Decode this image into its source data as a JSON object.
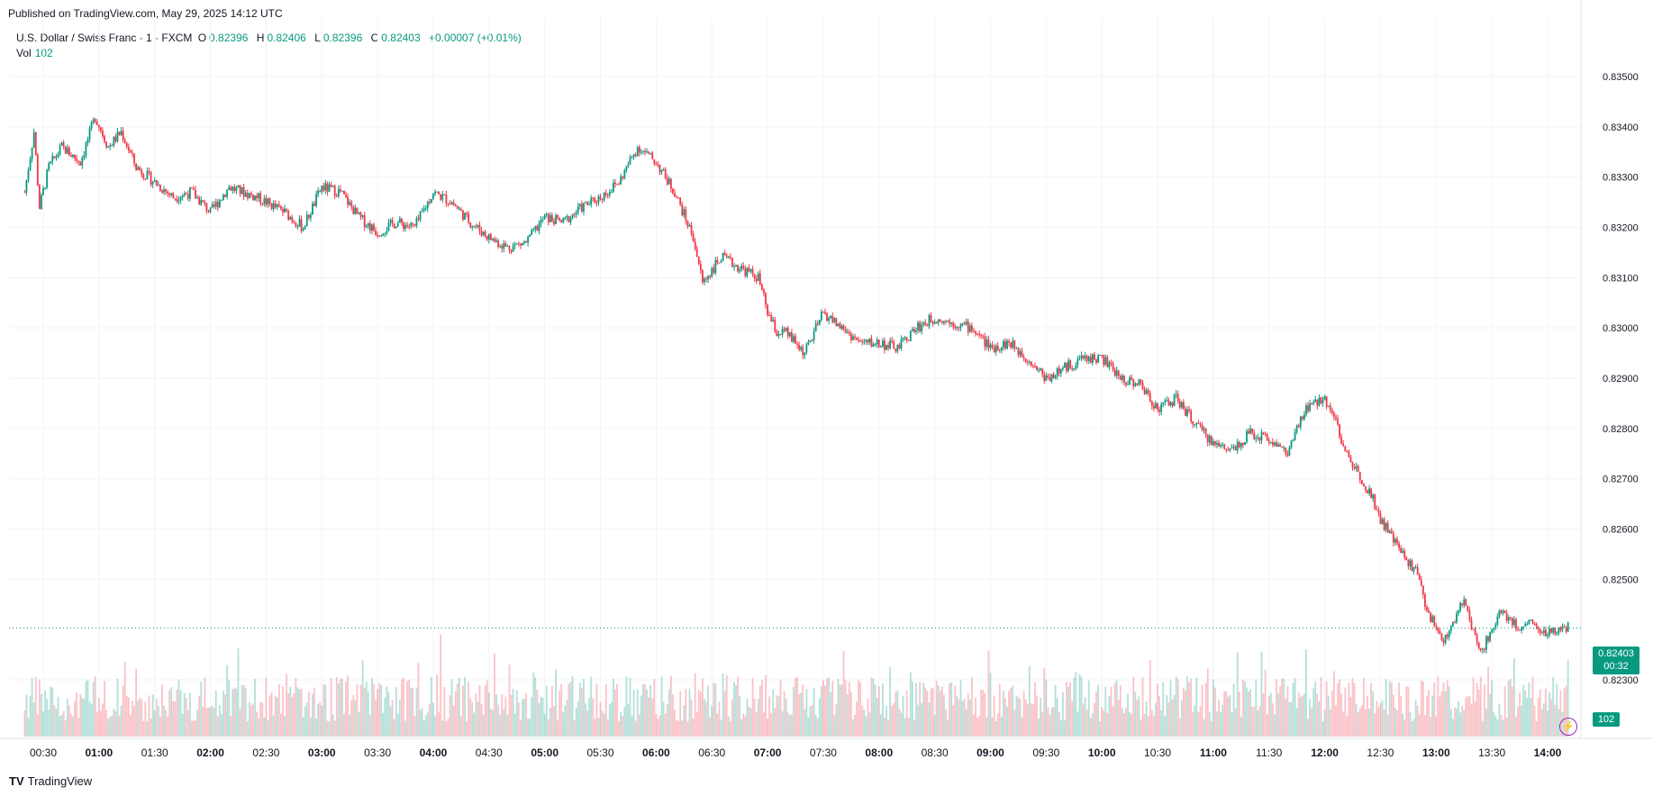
{
  "header": {
    "published": "Published on TradingView.com, May 29, 2025 14:12 UTC"
  },
  "legend": {
    "symbol": "U.S. Dollar / Swiss Franc · 1 · FXCM",
    "o_label": "O",
    "o_value": "0.82396",
    "h_label": "H",
    "h_value": "0.82406",
    "l_label": "L",
    "l_value": "0.82396",
    "c_label": "C",
    "c_value": "0.82403",
    "change": "+0.00007 (+0.01%)",
    "vol_label": "Vol",
    "vol_value": "102"
  },
  "price_tag": {
    "price": "0.82403",
    "countdown": "00:32"
  },
  "vol_tag": "102",
  "footer": {
    "logo": "TV",
    "brand": "TradingView"
  },
  "colors": {
    "up": "#089981",
    "down": "#f23645",
    "grid": "#f0f3fa",
    "text": "#131722"
  },
  "chart_data": {
    "type": "candlestick",
    "ylim": [
      0.8224,
      0.8356
    ],
    "y_ticks": [
      "0.83500",
      "0.83400",
      "0.83300",
      "0.83200",
      "0.83100",
      "0.83000",
      "0.82900",
      "0.82800",
      "0.82700",
      "0.82600",
      "0.82500",
      "0.82300"
    ],
    "y_tick_values": [
      0.835,
      0.834,
      0.833,
      0.832,
      0.831,
      0.83,
      0.829,
      0.828,
      0.827,
      0.826,
      0.825,
      0.823
    ],
    "x_ticks": [
      "00:30",
      "01:00",
      "01:30",
      "02:00",
      "02:30",
      "03:00",
      "03:30",
      "04:00",
      "04:30",
      "05:00",
      "05:30",
      "06:00",
      "06:30",
      "07:00",
      "07:30",
      "08:00",
      "08:30",
      "09:00",
      "09:30",
      "10:00",
      "10:30",
      "11:00",
      "11:30",
      "12:00",
      "12:30",
      "13:00",
      "13:30",
      "14:00"
    ],
    "x_tick_bold": [
      false,
      true,
      false,
      true,
      false,
      true,
      false,
      true,
      false,
      true,
      false,
      true,
      false,
      true,
      false,
      true,
      false,
      true,
      false,
      true,
      false,
      true,
      false,
      true,
      false,
      true,
      false,
      true
    ],
    "close_path": [
      [
        "00:20",
        0.8327
      ],
      [
        "00:25",
        0.8339
      ],
      [
        "00:28",
        0.8324
      ],
      [
        "00:33",
        0.8332
      ],
      [
        "00:40",
        0.8336
      ],
      [
        "00:50",
        0.8333
      ],
      [
        "00:58",
        0.8342
      ],
      [
        "01:05",
        0.8336
      ],
      [
        "01:12",
        0.8339
      ],
      [
        "01:20",
        0.8332
      ],
      [
        "01:30",
        0.8329
      ],
      [
        "01:40",
        0.8326
      ],
      [
        "01:50",
        0.8327
      ],
      [
        "02:00",
        0.8323
      ],
      [
        "02:10",
        0.8328
      ],
      [
        "02:25",
        0.8326
      ],
      [
        "02:40",
        0.8323
      ],
      [
        "02:50",
        0.832
      ],
      [
        "03:00",
        0.8328
      ],
      [
        "03:10",
        0.8327
      ],
      [
        "03:20",
        0.8322
      ],
      [
        "03:30",
        0.8319
      ],
      [
        "03:40",
        0.8321
      ],
      [
        "03:50",
        0.832
      ],
      [
        "04:00",
        0.8327
      ],
      [
        "04:10",
        0.8325
      ],
      [
        "04:20",
        0.8321
      ],
      [
        "04:30",
        0.8318
      ],
      [
        "04:40",
        0.8316
      ],
      [
        "04:50",
        0.8317
      ],
      [
        "05:00",
        0.8322
      ],
      [
        "05:10",
        0.8321
      ],
      [
        "05:20",
        0.8324
      ],
      [
        "05:30",
        0.8326
      ],
      [
        "05:40",
        0.8329
      ],
      [
        "05:50",
        0.8336
      ],
      [
        "06:00",
        0.8333
      ],
      [
        "06:10",
        0.8327
      ],
      [
        "06:20",
        0.8318
      ],
      [
        "06:25",
        0.8309
      ],
      [
        "06:35",
        0.8314
      ],
      [
        "06:45",
        0.8312
      ],
      [
        "06:55",
        0.831
      ],
      [
        "07:00",
        0.8303
      ],
      [
        "07:05",
        0.8299
      ],
      [
        "07:10",
        0.8299
      ],
      [
        "07:20",
        0.8295
      ],
      [
        "07:30",
        0.8303
      ],
      [
        "07:40",
        0.83
      ],
      [
        "07:50",
        0.8297
      ],
      [
        "08:00",
        0.8297
      ],
      [
        "08:10",
        0.8296
      ],
      [
        "08:20",
        0.83
      ],
      [
        "08:30",
        0.8302
      ],
      [
        "08:40",
        0.8301
      ],
      [
        "08:50",
        0.83
      ],
      [
        "09:00",
        0.8296
      ],
      [
        "09:10",
        0.8297
      ],
      [
        "09:20",
        0.8294
      ],
      [
        "09:30",
        0.829
      ],
      [
        "09:40",
        0.8292
      ],
      [
        "09:50",
        0.8294
      ],
      [
        "10:00",
        0.8294
      ],
      [
        "10:10",
        0.829
      ],
      [
        "10:20",
        0.8289
      ],
      [
        "10:30",
        0.8284
      ],
      [
        "10:40",
        0.8286
      ],
      [
        "10:50",
        0.8281
      ],
      [
        "11:00",
        0.8277
      ],
      [
        "11:10",
        0.8276
      ],
      [
        "11:20",
        0.8279
      ],
      [
        "11:30",
        0.8278
      ],
      [
        "11:40",
        0.8275
      ],
      [
        "11:50",
        0.8284
      ],
      [
        "12:00",
        0.8286
      ],
      [
        "12:05",
        0.8283
      ],
      [
        "12:10",
        0.8276
      ],
      [
        "12:20",
        0.827
      ],
      [
        "12:25",
        0.8267
      ],
      [
        "12:30",
        0.8262
      ],
      [
        "12:40",
        0.8256
      ],
      [
        "12:50",
        0.8251
      ],
      [
        "12:55",
        0.8244
      ],
      [
        "13:00",
        0.824
      ],
      [
        "13:05",
        0.8238
      ],
      [
        "13:10",
        0.8242
      ],
      [
        "13:15",
        0.8246
      ],
      [
        "13:20",
        0.8239
      ],
      [
        "13:25",
        0.8236
      ],
      [
        "13:30",
        0.824
      ],
      [
        "13:35",
        0.8244
      ],
      [
        "13:40",
        0.8242
      ],
      [
        "13:45",
        0.824
      ],
      [
        "13:50",
        0.8242
      ],
      [
        "13:55",
        0.824
      ],
      [
        "14:00",
        0.8239
      ],
      [
        "14:05",
        0.824
      ],
      [
        "14:11",
        0.82403
      ]
    ],
    "volume_max": 155,
    "volume_last": 102
  }
}
